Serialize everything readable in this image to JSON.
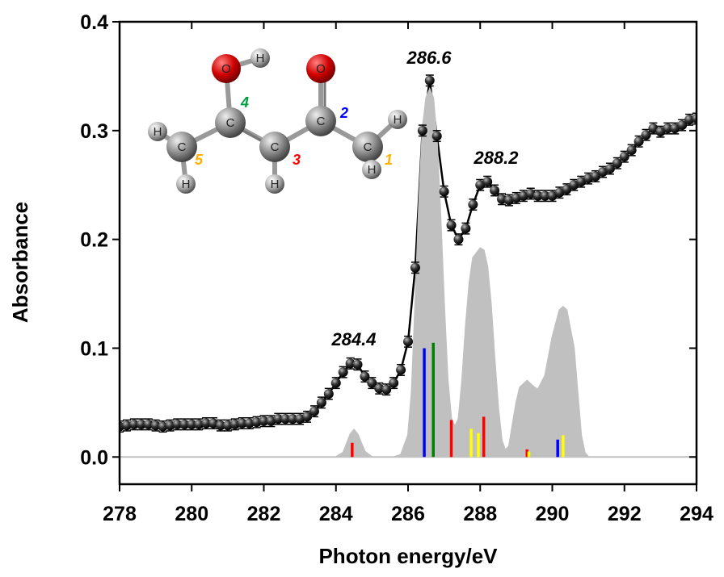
{
  "chart_data": {
    "type": "line",
    "x_label": "Photon energy/eV",
    "y_label": "Absorbance",
    "xlim": [
      278,
      294
    ],
    "ylim": [
      -0.025,
      0.4
    ],
    "xticks": [
      278,
      280,
      282,
      284,
      286,
      288,
      290,
      292,
      294
    ],
    "yticks": [
      {
        "value": 0,
        "label": "0.0"
      },
      0.1,
      0.2,
      0.3,
      0.4
    ],
    "annotations": [
      "284.4",
      "286.6",
      "288.2"
    ],
    "series": [
      {
        "color": "#000000",
        "marker": "sphere",
        "error": 0.005,
        "x": [
          278.0,
          278.2,
          278.4,
          278.6,
          278.8,
          279.0,
          279.2,
          279.4,
          279.6,
          279.8,
          280.0,
          280.2,
          280.4,
          280.6,
          280.8,
          281.0,
          281.2,
          281.4,
          281.6,
          281.8,
          282.0,
          282.2,
          282.4,
          282.6,
          282.8,
          283.0,
          283.2,
          283.4,
          283.6,
          283.8,
          284.0,
          284.2,
          284.4,
          284.6,
          284.8,
          285.0,
          285.2,
          285.4,
          285.6,
          285.8,
          286.0,
          286.2,
          286.4,
          286.6,
          286.8,
          287.0,
          287.2,
          287.4,
          287.6,
          287.8,
          288.0,
          288.2,
          288.4,
          288.6,
          288.8,
          289.0,
          289.2,
          289.4,
          289.6,
          289.8,
          290.0,
          290.2,
          290.4,
          290.6,
          290.8,
          291.0,
          291.2,
          291.4,
          291.6,
          291.8,
          292.0,
          292.2,
          292.4,
          292.6,
          292.8,
          293.0,
          293.2,
          293.4,
          293.6,
          293.8,
          294.0
        ],
        "values": [
          0.028,
          0.029,
          0.03,
          0.03,
          0.03,
          0.029,
          0.028,
          0.029,
          0.03,
          0.03,
          0.03,
          0.03,
          0.031,
          0.031,
          0.029,
          0.029,
          0.03,
          0.031,
          0.031,
          0.032,
          0.033,
          0.033,
          0.035,
          0.035,
          0.035,
          0.035,
          0.037,
          0.042,
          0.05,
          0.058,
          0.068,
          0.078,
          0.086,
          0.085,
          0.074,
          0.068,
          0.063,
          0.062,
          0.068,
          0.08,
          0.106,
          0.174,
          0.3,
          0.346,
          0.295,
          0.244,
          0.213,
          0.2,
          0.21,
          0.232,
          0.25,
          0.253,
          0.245,
          0.237,
          0.236,
          0.238,
          0.24,
          0.242,
          0.24,
          0.24,
          0.24,
          0.243,
          0.246,
          0.25,
          0.253,
          0.256,
          0.258,
          0.262,
          0.265,
          0.27,
          0.276,
          0.282,
          0.29,
          0.296,
          0.302,
          0.299,
          0.302,
          0.302,
          0.305,
          0.31,
          0.311
        ]
      },
      {
        "color": "#c0c0c0",
        "fill": true,
        "x": [
          278.0,
          283.8,
          284.0,
          284.2,
          284.4,
          284.5,
          284.6,
          284.8,
          285.0,
          285.6,
          285.8,
          286.0,
          286.1,
          286.2,
          286.3,
          286.4,
          286.5,
          286.6,
          286.7,
          286.8,
          286.9,
          287.0,
          287.1,
          287.2,
          287.3,
          287.4,
          287.5,
          287.6,
          287.7,
          287.8,
          288.0,
          288.1,
          288.2,
          288.3,
          288.4,
          288.5,
          288.6,
          288.7,
          288.8,
          288.9,
          289.0,
          289.1,
          289.3,
          289.5,
          289.6,
          289.8,
          290.0,
          290.2,
          290.3,
          290.4,
          290.6,
          290.7,
          290.8,
          290.9,
          291.0,
          294.0
        ],
        "values": [
          0,
          0,
          0,
          0.004,
          0.021,
          0.025,
          0.021,
          0.005,
          0,
          0,
          0.002,
          0.02,
          0.06,
          0.14,
          0.23,
          0.3,
          0.33,
          0.338,
          0.33,
          0.29,
          0.22,
          0.14,
          0.07,
          0.035,
          0.028,
          0.035,
          0.07,
          0.12,
          0.16,
          0.183,
          0.192,
          0.19,
          0.175,
          0.14,
          0.09,
          0.045,
          0.015,
          0.006,
          0.01,
          0.03,
          0.05,
          0.064,
          0.07,
          0.064,
          0.062,
          0.075,
          0.11,
          0.135,
          0.138,
          0.135,
          0.1,
          0.06,
          0.02,
          0.004,
          0,
          0
        ]
      }
    ],
    "sticks": {
      "x": [
        284.45,
        286.45,
        286.7,
        287.2,
        287.75,
        287.95,
        288.1,
        289.3,
        289.35,
        290.15,
        290.3
      ],
      "values": [
        0.013,
        0.1,
        0.105,
        0.034,
        0.026,
        0.022,
        0.037,
        0.007,
        0.005,
        0.016,
        0.02
      ],
      "colors": [
        "#ff0000",
        "#0000ff",
        "#008000",
        "#ff0000",
        "#ffff00",
        "#ffff00",
        "#ff0000",
        "#ff0000",
        "#ffff00",
        "#0000ff",
        "#ffff00"
      ]
    },
    "inset": {
      "atoms": [
        "O",
        "H",
        "O",
        "C",
        "C",
        "C",
        "C",
        "C",
        "H",
        "H",
        "H",
        "H",
        "H"
      ],
      "site_labels": [
        "1",
        "2",
        "3",
        "4",
        "5"
      ],
      "site_colors": [
        "#ffb000",
        "#0000ff",
        "#ff0000",
        "#00a040",
        "#ffb000"
      ]
    }
  }
}
